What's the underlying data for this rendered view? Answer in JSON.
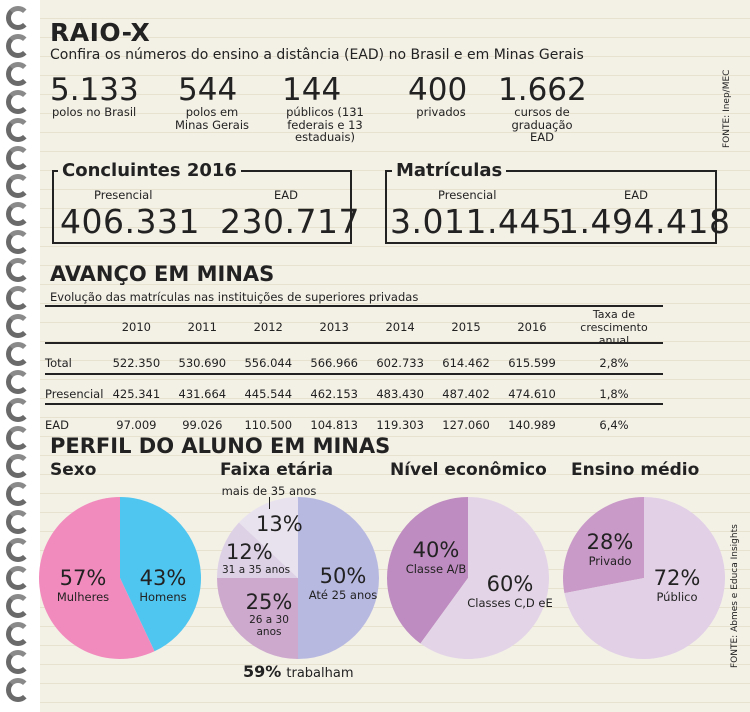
{
  "header": {
    "title": "RAIO-X",
    "subtitle": "Confira os números do ensino a distância (EAD) no Brasil e em Minas Gerais"
  },
  "stats": [
    {
      "value": "5.133",
      "label": "polos no Brasil"
    },
    {
      "value": "544",
      "label": "polos em Minas Gerais"
    },
    {
      "value": "144",
      "label": "públicos (131 federais e 13 estaduais)"
    },
    {
      "value": "400",
      "label": "privados"
    },
    {
      "value": "1.662",
      "label": "cursos de graduação EAD"
    }
  ],
  "source_top": "FONTE: Inep/MEC",
  "concluintes": {
    "title": "Concluintes 2016",
    "presencial_label": "Presencial",
    "ead_label": "EAD",
    "presencial_value": "406.331",
    "ead_value": "230.717"
  },
  "matriculas": {
    "title": "Matrículas",
    "presencial_label": "Presencial",
    "ead_label": "EAD",
    "presencial_value": "3.011.445",
    "ead_value": "1.494.418"
  },
  "avanco": {
    "title": "AVANÇO EM MINAS",
    "subtitle": "Evolução das matrículas nas instituições de superiores privadas",
    "columns": [
      "",
      "2010",
      "2011",
      "2012",
      "2013",
      "2014",
      "2015",
      "2016",
      "Taxa de crescimento anual"
    ],
    "rows": [
      [
        "Total",
        "522.350",
        "530.690",
        "556.044",
        "566.966",
        "602.733",
        "614.462",
        "615.599",
        "2,8%"
      ],
      [
        "Presencial",
        "425.341",
        "431.664",
        "445.544",
        "462.153",
        "483.430",
        "487.402",
        "474.610",
        "1,8%"
      ],
      [
        "EAD",
        "97.009",
        "99.026",
        "110.500",
        "104.813",
        "119.303",
        "127.060",
        "140.989",
        "6,4%"
      ]
    ]
  },
  "perfil": {
    "title": "PERFIL DO ALUNO EM MINAS",
    "sexo": {
      "title": "Sexo",
      "slices": [
        {
          "pct": "57%",
          "label": "Mulheres",
          "value": 57,
          "color": "#f28bbd"
        },
        {
          "pct": "43%",
          "label": "Homens",
          "value": 43,
          "color": "#4fc6f0"
        }
      ]
    },
    "faixa": {
      "title": "Faixa etária",
      "slices": [
        {
          "pct": "50%",
          "label": "Até 25 anos",
          "value": 50,
          "color": "#b8b9e1"
        },
        {
          "pct": "25%",
          "label": "26 a 30 anos",
          "value": 25,
          "color": "#cda9cd"
        },
        {
          "pct": "12%",
          "label": "31 a 35 anos",
          "value": 12,
          "color": "#ddd1e6"
        },
        {
          "pct": "13%",
          "label": "mais de 35 anos",
          "value": 13,
          "color": "#e8e2ee"
        }
      ],
      "trabalham_pct": "59%",
      "trabalham_label": "trabalham"
    },
    "nivel": {
      "title": "Nível econômico",
      "slices": [
        {
          "pct": "40%",
          "label": "Classe A/B",
          "value": 40,
          "color": "#be8cc0"
        },
        {
          "pct": "60%",
          "label": "Classes C,D eE",
          "value": 60,
          "color": "#e3d5e7"
        }
      ]
    },
    "ensino": {
      "title": "Ensino médio",
      "slices": [
        {
          "pct": "28%",
          "label": "Privado",
          "value": 28,
          "color": "#c99ac8"
        },
        {
          "pct": "72%",
          "label": "Público",
          "value": 72,
          "color": "#e1d0e6"
        }
      ]
    }
  },
  "source_bottom": "FONTE: Abmes e Educa Insights"
}
